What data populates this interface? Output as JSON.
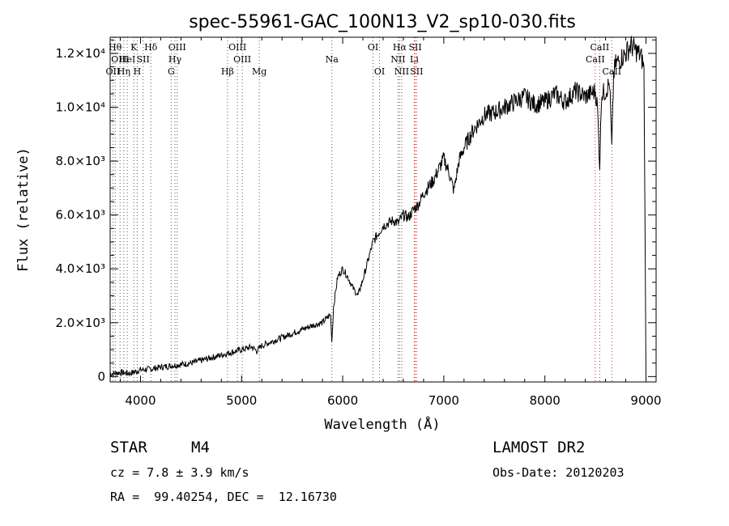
{
  "chart_data": {
    "type": "line",
    "title": "spec-55961-GAC_100N13_V2_sp10-030.fits",
    "xlabel": "Wavelength (Å)",
    "ylabel": "Flux (relative)",
    "xlim": [
      3700,
      9100
    ],
    "ylim": [
      -200,
      12600
    ],
    "x_ticks": [
      {
        "value": 4000,
        "label": "4000"
      },
      {
        "value": 5000,
        "label": "5000"
      },
      {
        "value": 6000,
        "label": "6000"
      },
      {
        "value": 7000,
        "label": "7000"
      },
      {
        "value": 8000,
        "label": "8000"
      },
      {
        "value": 9000,
        "label": "9000"
      }
    ],
    "y_ticks": [
      {
        "value": 0,
        "label": "0"
      },
      {
        "value": 2000,
        "label": "2.0×10³"
      },
      {
        "value": 4000,
        "label": "4.0×10³"
      },
      {
        "value": 6000,
        "label": "6.0×10³"
      },
      {
        "value": 8000,
        "label": "8.0×10³"
      },
      {
        "value": 10000,
        "label": "1.0×10⁴"
      },
      {
        "value": 12000,
        "label": "1.2×10⁴"
      }
    ],
    "series": [
      {
        "x": [
          3700,
          3800,
          3900,
          4000,
          4100,
          4200,
          4300,
          4400,
          4500,
          4600,
          4700,
          4800,
          4900,
          5000,
          5100,
          5150,
          5200,
          5300,
          5400,
          5500,
          5600,
          5700,
          5800,
          5850,
          5880,
          5893,
          5910,
          5950,
          6000,
          6050,
          6100,
          6150,
          6200,
          6250,
          6300,
          6350,
          6400,
          6500,
          6550,
          6600,
          6650,
          6700,
          6750,
          6800,
          6900,
          7000,
          7050,
          7100,
          7150,
          7200,
          7300,
          7400,
          7500,
          7600,
          7700,
          7800,
          7900,
          8000,
          8100,
          8200,
          8300,
          8400,
          8450,
          8500,
          8520,
          8542,
          8560,
          8600,
          8640,
          8662,
          8680,
          8700,
          8750,
          8800,
          8850,
          8900,
          8950,
          8980,
          9000
        ],
        "y": [
          100,
          150,
          120,
          250,
          280,
          350,
          400,
          450,
          500,
          600,
          700,
          800,
          900,
          1000,
          1100,
          950,
          1150,
          1300,
          1450,
          1600,
          1750,
          1900,
          2000,
          2200,
          2300,
          1300,
          2600,
          3700,
          4000,
          3700,
          3300,
          3000,
          3600,
          4300,
          5000,
          5300,
          5600,
          5800,
          5700,
          6000,
          5900,
          6200,
          6400,
          6800,
          7300,
          8100,
          7600,
          6900,
          8000,
          8500,
          9200,
          9700,
          9800,
          10000,
          10200,
          10400,
          10100,
          10200,
          10500,
          10200,
          10600,
          10400,
          10500,
          10600,
          10000,
          7800,
          10500,
          10600,
          10900,
          8500,
          11200,
          11600,
          11800,
          12000,
          12300,
          12100,
          11900,
          11500,
          0
        ]
      }
    ],
    "grid": false,
    "legend": "none",
    "spectral_lines": [
      {
        "wl": 3727,
        "label": "OII",
        "row": 2,
        "color": "#555555"
      },
      {
        "wl": 3750,
        "label": "Hθ",
        "row": 0,
        "color": "#555555"
      },
      {
        "wl": 3798,
        "label": "OIII",
        "row": 1,
        "color": "#555555"
      },
      {
        "wl": 3835,
        "label": "Hη",
        "row": 2,
        "color": "#555555"
      },
      {
        "wl": 3869,
        "label": "HeI",
        "row": 1,
        "color": "#555555"
      },
      {
        "wl": 3934,
        "label": "K",
        "row": 0,
        "color": "#555555"
      },
      {
        "wl": 3968,
        "label": "H",
        "row": 2,
        "color": "#555555"
      },
      {
        "wl": 4026,
        "label": "SII",
        "row": 1,
        "color": "#555555"
      },
      {
        "wl": 4102,
        "label": "Hδ",
        "row": 0,
        "color": "#555555"
      },
      {
        "wl": 4304,
        "label": "G",
        "row": 2,
        "color": "#555555"
      },
      {
        "wl": 4341,
        "label": "Hγ",
        "row": 1,
        "color": "#555555"
      },
      {
        "wl": 4363,
        "label": "OIII",
        "row": 0,
        "color": "#555555"
      },
      {
        "wl": 4861,
        "label": "Hβ",
        "row": 2,
        "color": "#555555"
      },
      {
        "wl": 4959,
        "label": "OIII",
        "row": 0,
        "color": "#555555"
      },
      {
        "wl": 5007,
        "label": "OIII",
        "row": 1,
        "color": "#555555"
      },
      {
        "wl": 5175,
        "label": "Mg",
        "row": 2,
        "color": "#555555"
      },
      {
        "wl": 5893,
        "label": "Na",
        "row": 1,
        "color": "#555555"
      },
      {
        "wl": 6300,
        "label": "OI",
        "row": 0,
        "color": "#555555"
      },
      {
        "wl": 6364,
        "label": "OI",
        "row": 2,
        "color": "#555555"
      },
      {
        "wl": 6548,
        "label": "NII",
        "row": 1,
        "color": "#555555"
      },
      {
        "wl": 6563,
        "label": "Hα",
        "row": 0,
        "color": "#cc2222"
      },
      {
        "wl": 6584,
        "label": "NII",
        "row": 2,
        "color": "#555555"
      },
      {
        "wl": 6708,
        "label": "Li",
        "row": 1,
        "color": "#cc2222"
      },
      {
        "wl": 6717,
        "label": "SII",
        "row": 0,
        "color": "#cc2222"
      },
      {
        "wl": 6731,
        "label": "SII",
        "row": 2,
        "color": "#cc2222"
      },
      {
        "wl": 8498,
        "label": "CaII",
        "row": 1,
        "color": "#cc2222"
      },
      {
        "wl": 8542,
        "label": "CaII",
        "row": 0,
        "color": "#cc2222"
      },
      {
        "wl": 8662,
        "label": "CaII",
        "row": 2,
        "color": "#cc2222"
      }
    ]
  },
  "info": {
    "object_class": "STAR",
    "subclass": "M4",
    "survey": "LAMOST DR2",
    "cz": "cz = 7.8 ± 3.9 km/s",
    "obs_date": "Obs-Date: 20120203",
    "coords": "RA =  99.40254, DEC =  12.16730"
  }
}
